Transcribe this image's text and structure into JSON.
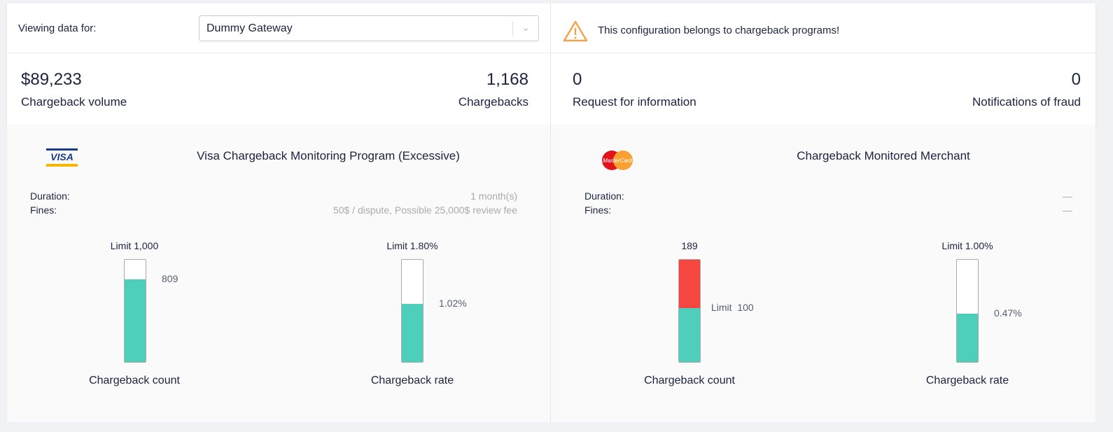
{
  "filter": {
    "label": "Viewing data for:",
    "selected": "Dummy Gateway"
  },
  "warning": {
    "icon": "warning-triangle-icon",
    "text": "This configuration belongs to chargeback programs!",
    "color": "#f5a04a"
  },
  "stats": [
    {
      "value": "$89,233",
      "label": "Chargeback volume"
    },
    {
      "value": "1,168",
      "label": "Chargebacks"
    },
    {
      "value": "0",
      "label": "Request for information"
    },
    {
      "value": "0",
      "label": "Notifications of fraud"
    }
  ],
  "programs": [
    {
      "logo": "VISA",
      "title": "Visa Chargeback Monitoring Program (Excessive)",
      "duration_label": "Duration:",
      "duration": "1 month(s)",
      "fines_label": "Fines:",
      "fines": "50$ / dispute, Possible 25,000$ review fee",
      "gauges": [
        {
          "top_label": "Limit 1,000",
          "value_label": "809",
          "caption": "Chargeback count",
          "value": 809,
          "limit": 1000
        },
        {
          "top_label": "Limit 1.80%",
          "value_label": "1.02%",
          "caption": "Chargeback rate",
          "value": 1.02,
          "limit": 1.8
        }
      ]
    },
    {
      "logo": "MasterCard",
      "title": "Chargeback Monitored Merchant",
      "duration_label": "Duration:",
      "duration": "—",
      "fines_label": "Fines:",
      "fines": "—",
      "gauges": [
        {
          "top_label": "189",
          "value_label": "Limit  100",
          "caption": "Chargeback count",
          "value": 189,
          "limit": 100,
          "exceeded": true
        },
        {
          "top_label": "Limit 1.00%",
          "value_label": "0.47%",
          "caption": "Chargeback rate",
          "value": 0.47,
          "limit": 1.0
        }
      ]
    }
  ],
  "colors": {
    "fill": "#4ecfbc",
    "over": "#f5463f",
    "text": "#1a2340"
  }
}
